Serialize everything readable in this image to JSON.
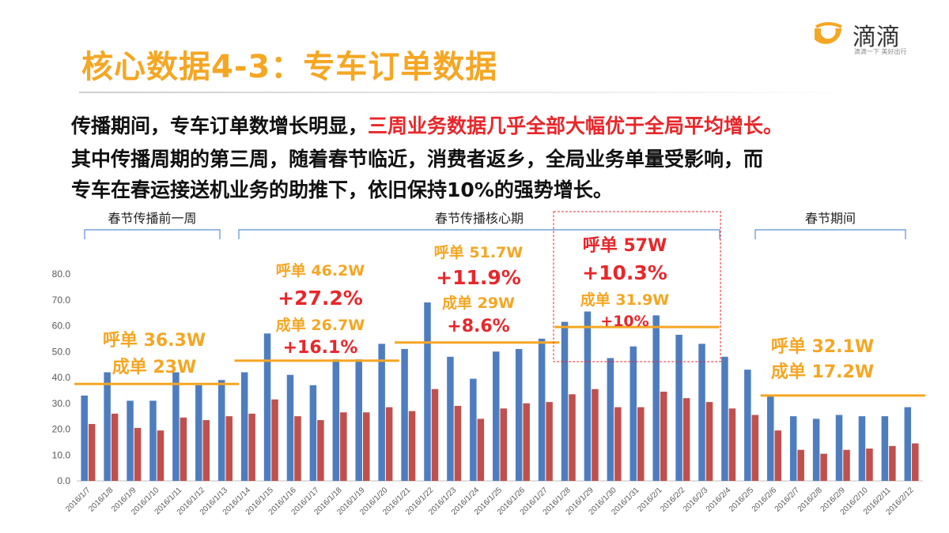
{
  "title": "核心数据4-3：专车订单数据",
  "logo": {
    "name": "滴滴",
    "slogan": "滴滴一下 美好出行",
    "color": "#f5a623"
  },
  "paragraph": {
    "line1_normal": "传播期间，专车订单数增长明显，",
    "line1_highlight": "三周业务数据几乎全部大幅优于全局平均增长。",
    "line2": "其中传播周期的第三周，随着春节临近，消费者返乡，全局业务单量受影响，而",
    "line3": "专车在春运接送机业务的助推下，依旧保持10%的强势增长。"
  },
  "colors": {
    "accent": "#f5a623",
    "highlight": "#e8272b",
    "series_calls": "#4e7dbf",
    "series_orders": "#c0504d",
    "bracket": "#5b8fd6"
  },
  "periods": [
    {
      "label": "春节传播前一周"
    },
    {
      "label": "春节传播核心期"
    },
    {
      "label": "春节期间"
    }
  ],
  "annotations": [
    {
      "lines": [
        "呼单 36.3W",
        "成单 23W"
      ]
    },
    {
      "lines": [
        "呼单 46.2W",
        "+27.2%",
        "成单 26.7W",
        "+16.1%"
      ]
    },
    {
      "lines": [
        "呼单 51.7W",
        "+11.9%",
        "成单 29W",
        "+8.6%"
      ]
    },
    {
      "lines": [
        "呼单 57W",
        "+10.3%",
        "成单 31.9W",
        "+10%"
      ]
    },
    {
      "lines": [
        "呼单 32.1W",
        "成单 17.2W"
      ]
    }
  ],
  "chart_data": {
    "type": "bar",
    "categories": [
      "2016/1/7",
      "2016/1/8",
      "2016/1/9",
      "2016/1/10",
      "2016/1/11",
      "2016/1/12",
      "2016/1/13",
      "2016/1/14",
      "2016/1/15",
      "2016/1/16",
      "2016/1/17",
      "2016/1/18",
      "2016/1/19",
      "2016/1/20",
      "2016/1/21",
      "2016/1/22",
      "2016/1/23",
      "2016/1/24",
      "2016/1/25",
      "2016/1/26",
      "2016/1/27",
      "2016/1/28",
      "2016/1/29",
      "2016/1/30",
      "2016/1/31",
      "2016/2/1",
      "2016/2/2",
      "2016/2/3",
      "2016/2/4",
      "2016/2/5",
      "2016/2/6",
      "2016/2/7",
      "2016/2/8",
      "2016/2/9",
      "2016/2/10",
      "2016/2/11",
      "2016/2/12"
    ],
    "series": [
      {
        "values": [
          33,
          42,
          31,
          31,
          42,
          37,
          39,
          42,
          57,
          41,
          37,
          47,
          47,
          53,
          51,
          69,
          48,
          39.5,
          50,
          51,
          55,
          61.5,
          65.5,
          47.5,
          52,
          64,
          56.5,
          53,
          48,
          43,
          33,
          25,
          24,
          25.5,
          25,
          25,
          28.5
        ]
      },
      {
        "values": [
          22,
          26,
          20.5,
          19.5,
          24.5,
          23.5,
          25,
          26,
          31.5,
          25,
          23.5,
          26.5,
          26.5,
          28.5,
          27,
          35.5,
          29,
          24,
          28,
          30,
          30.5,
          33.5,
          35.5,
          28.5,
          28.5,
          34.5,
          32,
          30.5,
          28,
          25.5,
          19.5,
          12,
          10.5,
          12,
          12.5,
          13.5,
          14.5
        ]
      }
    ],
    "reference_lines": [
      {
        "value": 37.5
      },
      {
        "value": 46.5
      },
      {
        "value": 53.5
      },
      {
        "value": 59.5
      },
      {
        "value": 33
      }
    ],
    "ylim": [
      0,
      80
    ],
    "yticks": [
      "0.0",
      "10.0",
      "20.0",
      "30.0",
      "40.0",
      "50.0",
      "60.0",
      "70.0",
      "80.0"
    ],
    "grid": false
  }
}
